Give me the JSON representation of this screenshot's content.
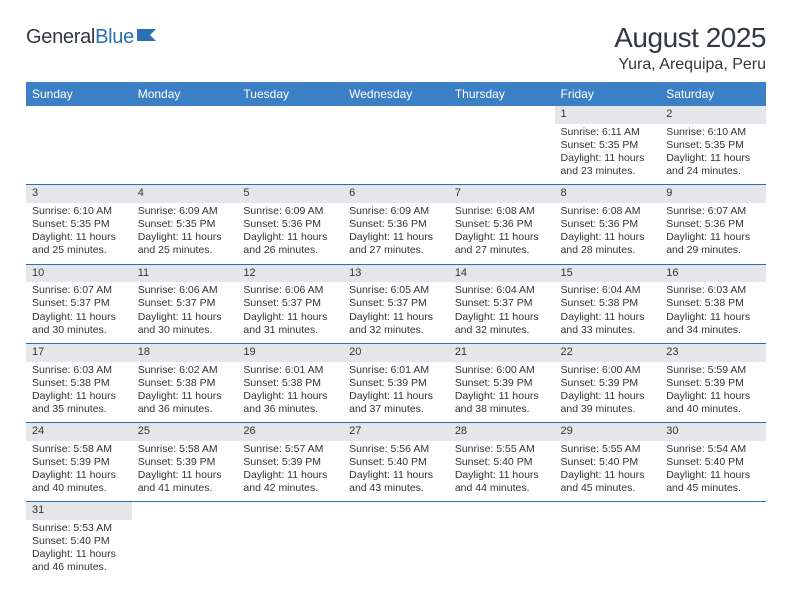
{
  "logo": {
    "part1": "General",
    "part2": "Blue"
  },
  "title": "August 2025",
  "location": "Yura, Arequipa, Peru",
  "colors": {
    "header_bg": "#3b7fc4",
    "header_text": "#ffffff",
    "daynum_bg": "#e4e6e9",
    "row_border": "#2d6fb5",
    "text": "#333333",
    "logo_blue": "#2d6fb5"
  },
  "weekdays": [
    "Sunday",
    "Monday",
    "Tuesday",
    "Wednesday",
    "Thursday",
    "Friday",
    "Saturday"
  ],
  "weeks": [
    [
      null,
      null,
      null,
      null,
      null,
      {
        "n": "1",
        "sunrise": "Sunrise: 6:11 AM",
        "sunset": "Sunset: 5:35 PM",
        "day1": "Daylight: 11 hours",
        "day2": "and 23 minutes."
      },
      {
        "n": "2",
        "sunrise": "Sunrise: 6:10 AM",
        "sunset": "Sunset: 5:35 PM",
        "day1": "Daylight: 11 hours",
        "day2": "and 24 minutes."
      }
    ],
    [
      {
        "n": "3",
        "sunrise": "Sunrise: 6:10 AM",
        "sunset": "Sunset: 5:35 PM",
        "day1": "Daylight: 11 hours",
        "day2": "and 25 minutes."
      },
      {
        "n": "4",
        "sunrise": "Sunrise: 6:09 AM",
        "sunset": "Sunset: 5:35 PM",
        "day1": "Daylight: 11 hours",
        "day2": "and 25 minutes."
      },
      {
        "n": "5",
        "sunrise": "Sunrise: 6:09 AM",
        "sunset": "Sunset: 5:36 PM",
        "day1": "Daylight: 11 hours",
        "day2": "and 26 minutes."
      },
      {
        "n": "6",
        "sunrise": "Sunrise: 6:09 AM",
        "sunset": "Sunset: 5:36 PM",
        "day1": "Daylight: 11 hours",
        "day2": "and 27 minutes."
      },
      {
        "n": "7",
        "sunrise": "Sunrise: 6:08 AM",
        "sunset": "Sunset: 5:36 PM",
        "day1": "Daylight: 11 hours",
        "day2": "and 27 minutes."
      },
      {
        "n": "8",
        "sunrise": "Sunrise: 6:08 AM",
        "sunset": "Sunset: 5:36 PM",
        "day1": "Daylight: 11 hours",
        "day2": "and 28 minutes."
      },
      {
        "n": "9",
        "sunrise": "Sunrise: 6:07 AM",
        "sunset": "Sunset: 5:36 PM",
        "day1": "Daylight: 11 hours",
        "day2": "and 29 minutes."
      }
    ],
    [
      {
        "n": "10",
        "sunrise": "Sunrise: 6:07 AM",
        "sunset": "Sunset: 5:37 PM",
        "day1": "Daylight: 11 hours",
        "day2": "and 30 minutes."
      },
      {
        "n": "11",
        "sunrise": "Sunrise: 6:06 AM",
        "sunset": "Sunset: 5:37 PM",
        "day1": "Daylight: 11 hours",
        "day2": "and 30 minutes."
      },
      {
        "n": "12",
        "sunrise": "Sunrise: 6:06 AM",
        "sunset": "Sunset: 5:37 PM",
        "day1": "Daylight: 11 hours",
        "day2": "and 31 minutes."
      },
      {
        "n": "13",
        "sunrise": "Sunrise: 6:05 AM",
        "sunset": "Sunset: 5:37 PM",
        "day1": "Daylight: 11 hours",
        "day2": "and 32 minutes."
      },
      {
        "n": "14",
        "sunrise": "Sunrise: 6:04 AM",
        "sunset": "Sunset: 5:37 PM",
        "day1": "Daylight: 11 hours",
        "day2": "and 32 minutes."
      },
      {
        "n": "15",
        "sunrise": "Sunrise: 6:04 AM",
        "sunset": "Sunset: 5:38 PM",
        "day1": "Daylight: 11 hours",
        "day2": "and 33 minutes."
      },
      {
        "n": "16",
        "sunrise": "Sunrise: 6:03 AM",
        "sunset": "Sunset: 5:38 PM",
        "day1": "Daylight: 11 hours",
        "day2": "and 34 minutes."
      }
    ],
    [
      {
        "n": "17",
        "sunrise": "Sunrise: 6:03 AM",
        "sunset": "Sunset: 5:38 PM",
        "day1": "Daylight: 11 hours",
        "day2": "and 35 minutes."
      },
      {
        "n": "18",
        "sunrise": "Sunrise: 6:02 AM",
        "sunset": "Sunset: 5:38 PM",
        "day1": "Daylight: 11 hours",
        "day2": "and 36 minutes."
      },
      {
        "n": "19",
        "sunrise": "Sunrise: 6:01 AM",
        "sunset": "Sunset: 5:38 PM",
        "day1": "Daylight: 11 hours",
        "day2": "and 36 minutes."
      },
      {
        "n": "20",
        "sunrise": "Sunrise: 6:01 AM",
        "sunset": "Sunset: 5:39 PM",
        "day1": "Daylight: 11 hours",
        "day2": "and 37 minutes."
      },
      {
        "n": "21",
        "sunrise": "Sunrise: 6:00 AM",
        "sunset": "Sunset: 5:39 PM",
        "day1": "Daylight: 11 hours",
        "day2": "and 38 minutes."
      },
      {
        "n": "22",
        "sunrise": "Sunrise: 6:00 AM",
        "sunset": "Sunset: 5:39 PM",
        "day1": "Daylight: 11 hours",
        "day2": "and 39 minutes."
      },
      {
        "n": "23",
        "sunrise": "Sunrise: 5:59 AM",
        "sunset": "Sunset: 5:39 PM",
        "day1": "Daylight: 11 hours",
        "day2": "and 40 minutes."
      }
    ],
    [
      {
        "n": "24",
        "sunrise": "Sunrise: 5:58 AM",
        "sunset": "Sunset: 5:39 PM",
        "day1": "Daylight: 11 hours",
        "day2": "and 40 minutes."
      },
      {
        "n": "25",
        "sunrise": "Sunrise: 5:58 AM",
        "sunset": "Sunset: 5:39 PM",
        "day1": "Daylight: 11 hours",
        "day2": "and 41 minutes."
      },
      {
        "n": "26",
        "sunrise": "Sunrise: 5:57 AM",
        "sunset": "Sunset: 5:39 PM",
        "day1": "Daylight: 11 hours",
        "day2": "and 42 minutes."
      },
      {
        "n": "27",
        "sunrise": "Sunrise: 5:56 AM",
        "sunset": "Sunset: 5:40 PM",
        "day1": "Daylight: 11 hours",
        "day2": "and 43 minutes."
      },
      {
        "n": "28",
        "sunrise": "Sunrise: 5:55 AM",
        "sunset": "Sunset: 5:40 PM",
        "day1": "Daylight: 11 hours",
        "day2": "and 44 minutes."
      },
      {
        "n": "29",
        "sunrise": "Sunrise: 5:55 AM",
        "sunset": "Sunset: 5:40 PM",
        "day1": "Daylight: 11 hours",
        "day2": "and 45 minutes."
      },
      {
        "n": "30",
        "sunrise": "Sunrise: 5:54 AM",
        "sunset": "Sunset: 5:40 PM",
        "day1": "Daylight: 11 hours",
        "day2": "and 45 minutes."
      }
    ],
    [
      {
        "n": "31",
        "sunrise": "Sunrise: 5:53 AM",
        "sunset": "Sunset: 5:40 PM",
        "day1": "Daylight: 11 hours",
        "day2": "and 46 minutes."
      },
      null,
      null,
      null,
      null,
      null,
      null
    ]
  ]
}
